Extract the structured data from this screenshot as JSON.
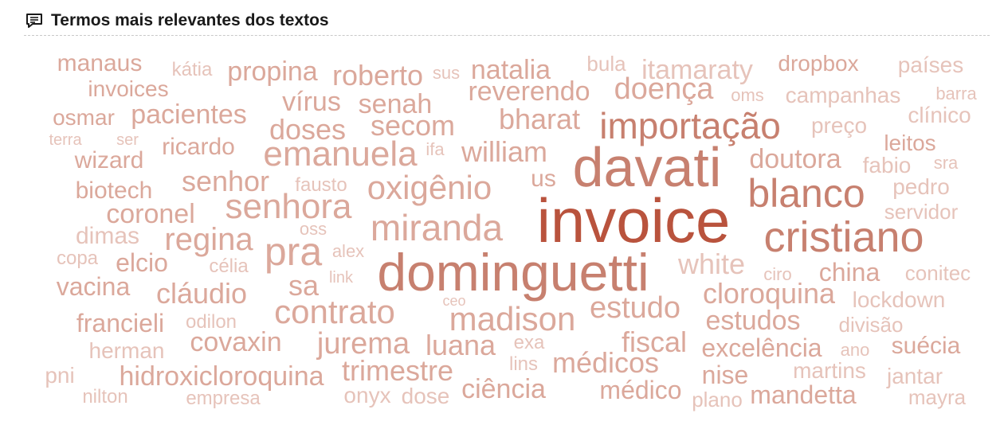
{
  "header": {
    "title": "Termos mais relevantes dos textos",
    "icon": "comment-lines-icon"
  },
  "colors": {
    "strong": "#b9533d",
    "medium": "#c7806f",
    "light": "#dba89b",
    "faint": "#e6c3ba"
  },
  "words": [
    {
      "text": "manaus"
    },
    {
      "text": "kátia"
    },
    {
      "text": "propina"
    },
    {
      "text": "roberto"
    },
    {
      "text": "sus"
    },
    {
      "text": "natalia"
    },
    {
      "text": "bula"
    },
    {
      "text": "itamaraty"
    },
    {
      "text": "dropbox"
    },
    {
      "text": "países"
    },
    {
      "text": "invoices"
    },
    {
      "text": "reverendo"
    },
    {
      "text": "doença"
    },
    {
      "text": "oms"
    },
    {
      "text": "campanhas"
    },
    {
      "text": "barra"
    },
    {
      "text": "osmar"
    },
    {
      "text": "pacientes"
    },
    {
      "text": "vírus"
    },
    {
      "text": "senah"
    },
    {
      "text": "bharat"
    },
    {
      "text": "importação"
    },
    {
      "text": "preço"
    },
    {
      "text": "clínico"
    },
    {
      "text": "terra"
    },
    {
      "text": "ser"
    },
    {
      "text": "doses"
    },
    {
      "text": "secom"
    },
    {
      "text": "leitos"
    },
    {
      "text": "wizard"
    },
    {
      "text": "ricardo"
    },
    {
      "text": "emanuela"
    },
    {
      "text": "ifa"
    },
    {
      "text": "william"
    },
    {
      "text": "davati"
    },
    {
      "text": "doutora"
    },
    {
      "text": "fabio"
    },
    {
      "text": "sra"
    },
    {
      "text": "biotech"
    },
    {
      "text": "senhor"
    },
    {
      "text": "fausto"
    },
    {
      "text": "oxigênio"
    },
    {
      "text": "us"
    },
    {
      "text": "blanco"
    },
    {
      "text": "pedro"
    },
    {
      "text": "coronel"
    },
    {
      "text": "senhora"
    },
    {
      "text": "invoice"
    },
    {
      "text": "servidor"
    },
    {
      "text": "dimas"
    },
    {
      "text": "oss"
    },
    {
      "text": "miranda"
    },
    {
      "text": "cristiano"
    },
    {
      "text": "regina"
    },
    {
      "text": "alex"
    },
    {
      "text": "copa"
    },
    {
      "text": "elcio"
    },
    {
      "text": "pra"
    },
    {
      "text": "célia"
    },
    {
      "text": "dominguetti"
    },
    {
      "text": "white"
    },
    {
      "text": "china"
    },
    {
      "text": "conitec"
    },
    {
      "text": "ciro"
    },
    {
      "text": "link"
    },
    {
      "text": "vacina"
    },
    {
      "text": "cláudio"
    },
    {
      "text": "sa"
    },
    {
      "text": "cloroquina"
    },
    {
      "text": "ceo"
    },
    {
      "text": "lockdown"
    },
    {
      "text": "contrato"
    },
    {
      "text": "estudo"
    },
    {
      "text": "francieli"
    },
    {
      "text": "odilon"
    },
    {
      "text": "madison"
    },
    {
      "text": "estudos"
    },
    {
      "text": "divisão"
    },
    {
      "text": "covaxin"
    },
    {
      "text": "jurema"
    },
    {
      "text": "luana"
    },
    {
      "text": "exa"
    },
    {
      "text": "fiscal"
    },
    {
      "text": "herman"
    },
    {
      "text": "excelência"
    },
    {
      "text": "ano"
    },
    {
      "text": "suécia"
    },
    {
      "text": "lins"
    },
    {
      "text": "médicos"
    },
    {
      "text": "pni"
    },
    {
      "text": "hidroxicloroquina"
    },
    {
      "text": "trimestre"
    },
    {
      "text": "nise"
    },
    {
      "text": "martins"
    },
    {
      "text": "jantar"
    },
    {
      "text": "ciência"
    },
    {
      "text": "médico"
    },
    {
      "text": "onyx"
    },
    {
      "text": "dose"
    },
    {
      "text": "nilton"
    },
    {
      "text": "empresa"
    },
    {
      "text": "plano"
    },
    {
      "text": "mandetta"
    },
    {
      "text": "mayra"
    }
  ]
}
